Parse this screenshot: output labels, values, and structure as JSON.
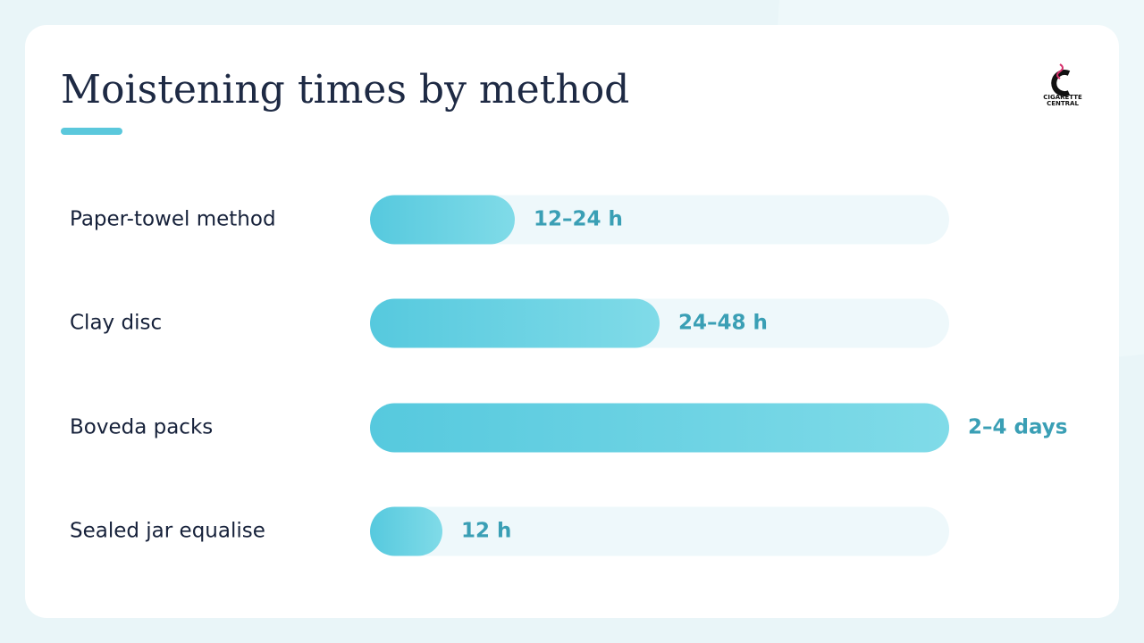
{
  "chart_data": {
    "type": "bar",
    "orientation": "horizontal",
    "title": "Moistening times by method",
    "categories": [
      "Paper-towel method",
      "Clay disc",
      "Boveda packs",
      "Sealed jar equalise"
    ],
    "values": [
      24,
      48,
      96,
      12
    ],
    "value_labels": [
      "12–24 h",
      "24–48 h",
      "2–4 days",
      "12 h"
    ],
    "color": "#56c9de",
    "xlim": [
      0,
      96
    ]
  },
  "logo": {
    "line1": "CIGARETTE",
    "line2": "CENTRAL"
  }
}
